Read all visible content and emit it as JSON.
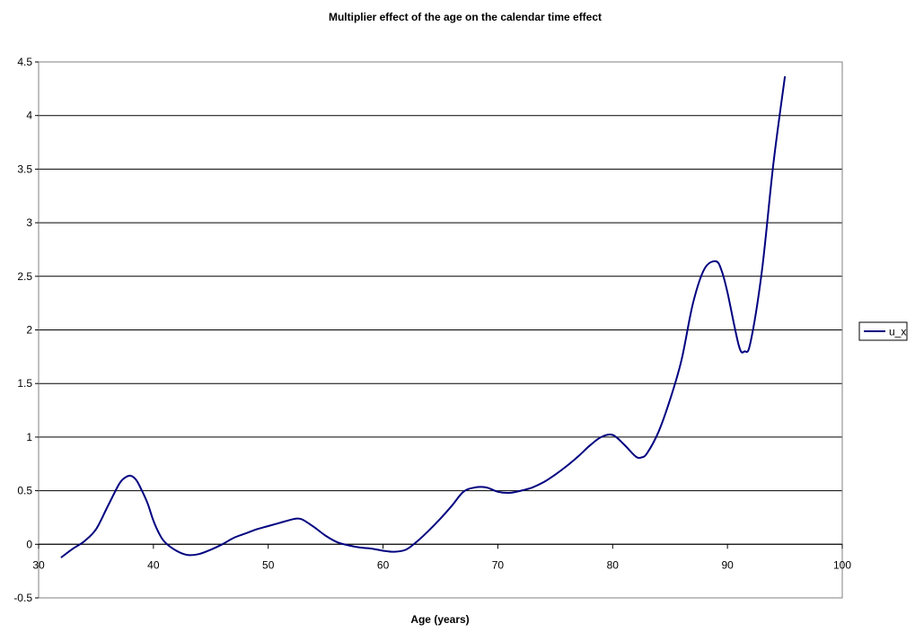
{
  "chart_data": {
    "type": "line",
    "title": "Multiplier effect of the age on the calendar time effect",
    "xlabel": "Age (years)",
    "ylabel": "",
    "xlim": [
      30,
      100
    ],
    "ylim": [
      -0.5,
      4.5
    ],
    "xticks": [
      "30",
      "40",
      "50",
      "60",
      "70",
      "80",
      "90",
      "100"
    ],
    "yticks": [
      "-0.5",
      "0",
      "0.5",
      "1",
      "1.5",
      "2",
      "2.5",
      "3",
      "3.5",
      "4",
      "4.5"
    ],
    "grid": "horizontal major gridlines",
    "legend_position": "right",
    "series": [
      {
        "name": "u_x",
        "color": "#000080",
        "x": [
          32,
          33,
          34,
          35,
          36,
          37,
          37.5,
          38,
          38.5,
          39,
          39.5,
          40,
          40.5,
          41,
          42,
          43,
          44,
          45,
          46,
          47,
          48,
          49,
          50,
          51,
          52,
          52.5,
          53,
          54,
          55,
          56,
          57,
          58,
          59,
          60,
          61,
          62,
          63,
          64,
          65,
          66,
          67,
          68,
          69,
          70,
          71,
          72,
          73,
          74,
          75,
          76,
          77,
          78,
          79,
          80,
          81,
          82,
          82.5,
          83,
          84,
          85,
          86,
          87,
          88,
          89,
          89.5,
          90,
          91,
          91.5,
          92,
          93,
          94,
          95
        ],
        "y": [
          -0.12,
          -0.04,
          0.03,
          0.14,
          0.35,
          0.56,
          0.62,
          0.64,
          0.6,
          0.5,
          0.38,
          0.22,
          0.1,
          0.02,
          -0.06,
          -0.1,
          -0.09,
          -0.05,
          0.0,
          0.06,
          0.1,
          0.14,
          0.17,
          0.2,
          0.23,
          0.24,
          0.23,
          0.16,
          0.08,
          0.02,
          -0.01,
          -0.03,
          -0.04,
          -0.06,
          -0.07,
          -0.05,
          0.03,
          0.13,
          0.24,
          0.36,
          0.49,
          0.53,
          0.53,
          0.49,
          0.48,
          0.5,
          0.53,
          0.58,
          0.65,
          0.73,
          0.82,
          0.92,
          1.0,
          1.02,
          0.93,
          0.82,
          0.81,
          0.85,
          1.05,
          1.35,
          1.72,
          2.25,
          2.57,
          2.64,
          2.55,
          2.35,
          1.85,
          1.8,
          1.88,
          2.55,
          3.55,
          4.36
        ]
      }
    ]
  }
}
